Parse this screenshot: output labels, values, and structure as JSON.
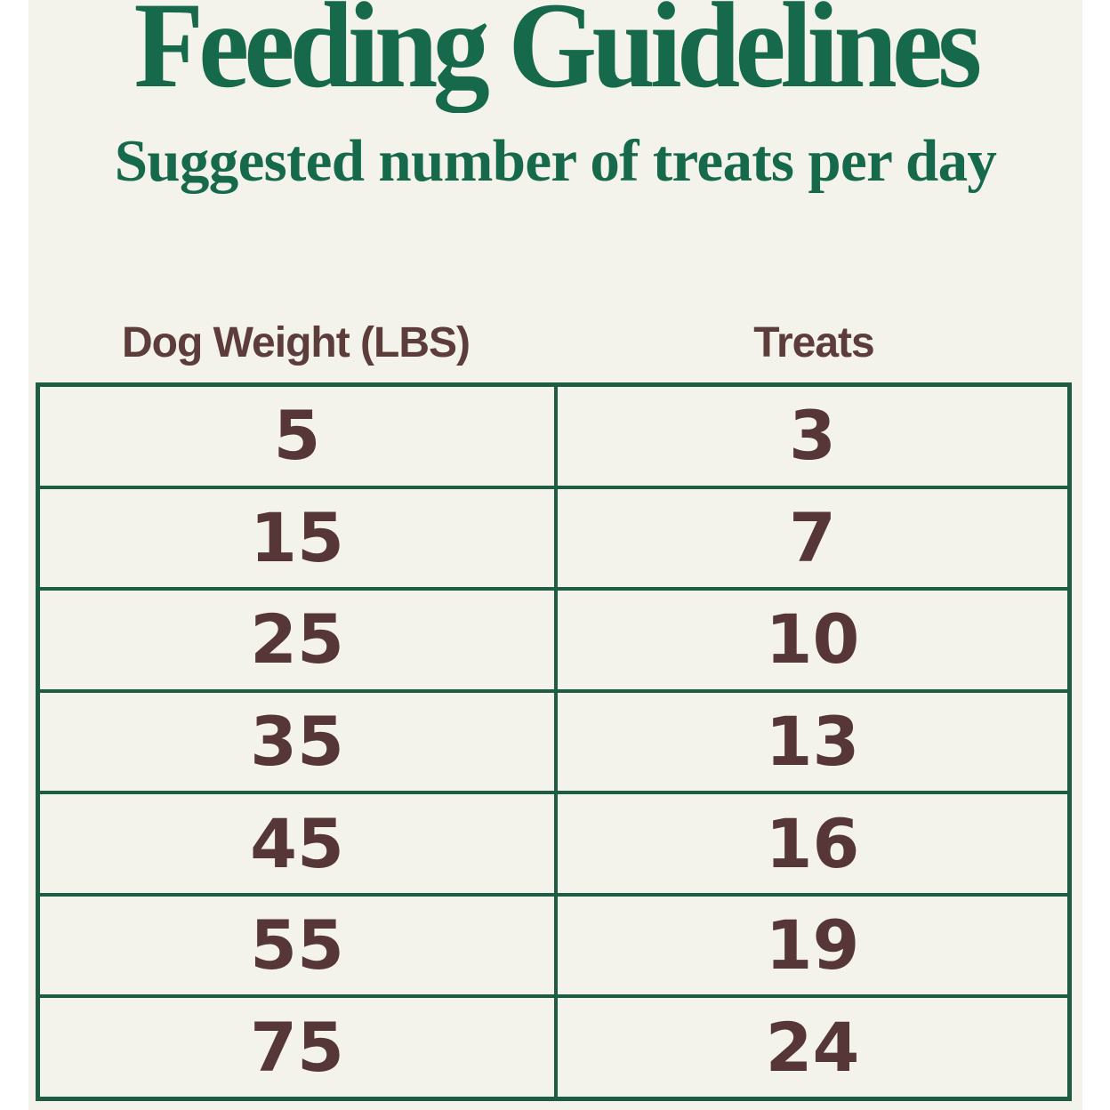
{
  "page": {
    "title": "Feeding Guidelines",
    "subtitle": "Suggested number of treats per day"
  },
  "colors": {
    "heading_green": "#17694c",
    "table_border_green": "#1e5c44",
    "text_brown": "#563637",
    "header_brown": "#5d3c3c",
    "content_background": "#f3f2eb",
    "page_margin": "#ffffff"
  },
  "table": {
    "headers": {
      "weight": "Dog Weight (LBS)",
      "treats": "Treats"
    },
    "rows": [
      {
        "weight": "5",
        "treats": "3"
      },
      {
        "weight": "15",
        "treats": "7"
      },
      {
        "weight": "25",
        "treats": "10"
      },
      {
        "weight": "35",
        "treats": "13"
      },
      {
        "weight": "45",
        "treats": "16"
      },
      {
        "weight": "55",
        "treats": "19"
      },
      {
        "weight": "75",
        "treats": "24"
      }
    ]
  },
  "chart_data": {
    "type": "table",
    "title": "Feeding Guidelines",
    "subtitle": "Suggested number of treats per day",
    "columns": [
      "Dog Weight (LBS)",
      "Treats"
    ],
    "rows": [
      [
        5,
        3
      ],
      [
        15,
        7
      ],
      [
        25,
        10
      ],
      [
        35,
        13
      ],
      [
        45,
        16
      ],
      [
        55,
        19
      ],
      [
        75,
        24
      ]
    ],
    "layout": "two-column bordered table, 7 data rows, dark-green grid lines on off-white background, column headers above the table"
  }
}
